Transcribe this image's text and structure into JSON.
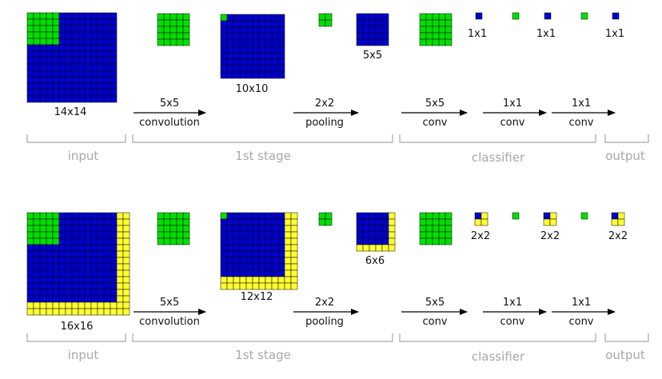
{
  "colors": {
    "blue": "#0000cc",
    "green": "#00e000",
    "yellow": "#ffff33",
    "grid": "#000000",
    "bracket": "#a8a8a8",
    "text": "#111111"
  },
  "top": {
    "input_size": "14x14",
    "stage_size": "10x10",
    "pool_size": "5x5",
    "output_sizes": [
      "1x1",
      "1x1",
      "1x1"
    ]
  },
  "bottom": {
    "input_size": "16x16",
    "stage_size": "12x12",
    "pool_size": "6x6",
    "output_sizes": [
      "2x2",
      "2x2",
      "2x2"
    ]
  },
  "ops": {
    "conv5": "5x5",
    "convolution": "convolution",
    "pool2": "2x2",
    "pooling": "pooling",
    "conv5b": "5x5",
    "conv_a": "conv",
    "conv1a": "1x1",
    "conv_b": "conv",
    "conv1b": "1x1",
    "conv_c": "conv"
  },
  "sections": {
    "input": "input",
    "stage": "1st stage",
    "classifier": "classifier",
    "output": "output"
  }
}
